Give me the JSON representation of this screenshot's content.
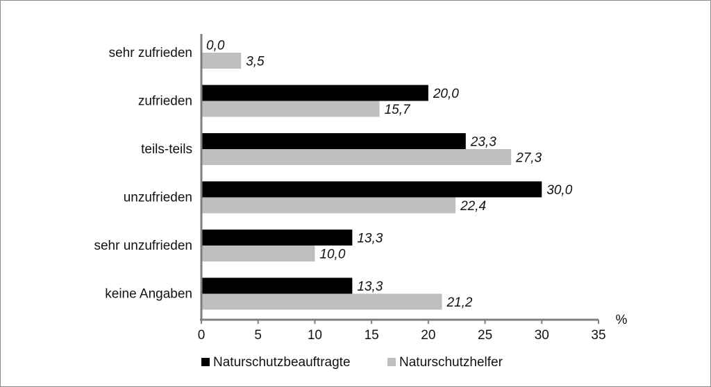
{
  "chart_data": {
    "type": "bar",
    "orientation": "horizontal",
    "categories": [
      "sehr zufrieden",
      "zufrieden",
      "teils-teils",
      "unzufrieden",
      "sehr unzufrieden",
      "keine Angaben"
    ],
    "series": [
      {
        "name": "Naturschutzbeauftragte",
        "color": "#000000",
        "values": [
          0.0,
          20.0,
          23.3,
          30.0,
          13.3,
          13.3
        ],
        "labels": [
          "0,0",
          "20,0",
          "23,3",
          "30,0",
          "13,3",
          "13,3"
        ]
      },
      {
        "name": "Naturschutzhelfer",
        "color": "#bfbfbf",
        "values": [
          3.5,
          15.7,
          27.3,
          22.4,
          10.0,
          21.2
        ],
        "labels": [
          "3,5",
          "15,7",
          "27,3",
          "22,4",
          "10,0",
          "21,2"
        ]
      }
    ],
    "xlim": [
      0,
      35
    ],
    "xticks": [
      0,
      5,
      10,
      15,
      20,
      25,
      30,
      35
    ],
    "xunit": "%",
    "grid": false,
    "legend_position": "bottom"
  }
}
